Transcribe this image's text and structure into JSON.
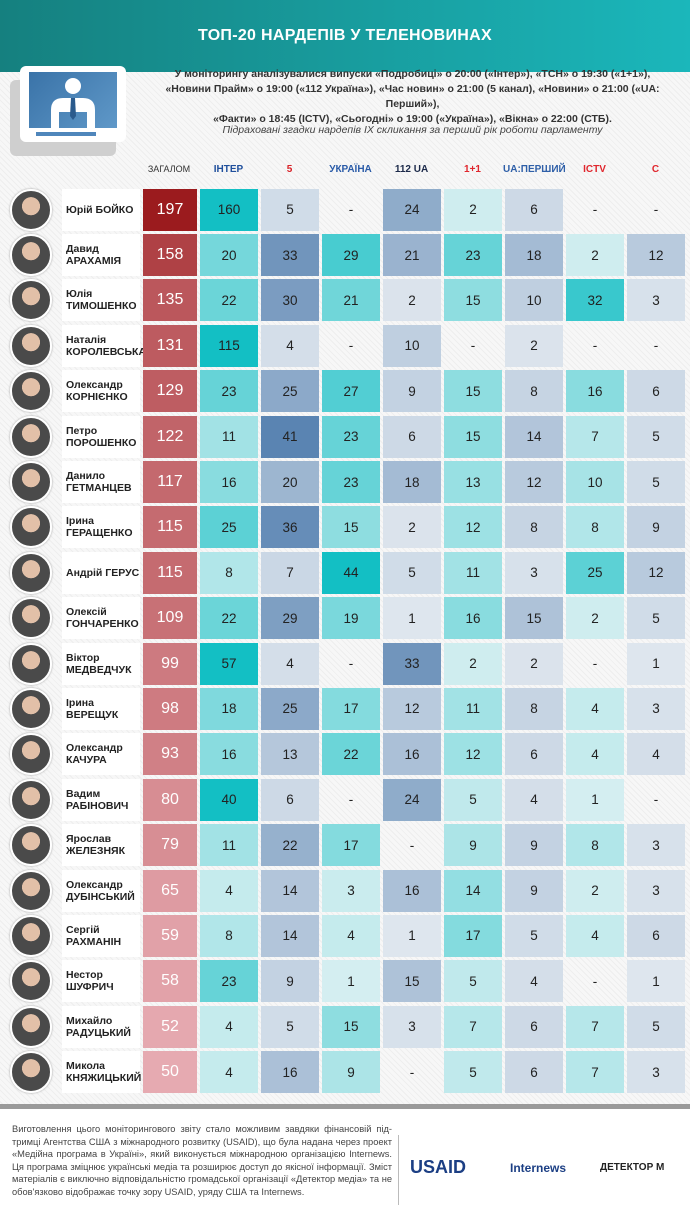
{
  "header": {
    "title": "ТОП-20 НАРДЕПІВ У ТЕЛЕНОВИНАХ"
  },
  "intro": {
    "line1": "У моніторингу аналізувалися випуски «Подробиці» о 20:00 («Інтер»), «ТСН» о 19:30 («1+1»),",
    "line2": "«Новини Прайм» о 19:00 («112 Україна»), «Час новин» о 21:00 (5 канал), «Новини» о 21:00 («UA: Перший»),",
    "line3": "«Факти» о 18:45 (ICTV), «Сьогодні» о 19:00 («Україна»), «Вікна» о 22:00 (СТБ).",
    "subtitle": "Підраховані згадки нардепів IX скликання за перший рік роботи парламенту"
  },
  "colors": {
    "header": "#1aa9ad",
    "total_dark": "#9b1b1e",
    "total_light": "#e6aab1",
    "teal": "#13bfc4",
    "blue": "#5a84b2"
  },
  "chart_data": {
    "type": "heatmap",
    "total_label": "ЗАГАЛОМ",
    "channels": [
      {
        "label": "ІНТЕР",
        "color": "#1f4f9c",
        "scale": "teal"
      },
      {
        "label": "5",
        "color": "#d92127",
        "scale": "blue"
      },
      {
        "label": "УКРАЇНА",
        "color": "#2a5ba8",
        "scale": "teal"
      },
      {
        "label": "112 UA",
        "color": "#1c2a4a",
        "scale": "blue"
      },
      {
        "label": "1+1",
        "color": "#e0262d",
        "scale": "teal"
      },
      {
        "label": "UA:ПЕРШИЙ",
        "color": "#2e5fa8",
        "scale": "blue"
      },
      {
        "label": "ICTV",
        "color": "#e0262d",
        "scale": "teal"
      },
      {
        "label": "С",
        "color": "#e0262d",
        "scale": "blue"
      }
    ],
    "rows": [
      {
        "first": "Юрій БОЙКО",
        "last": "",
        "total": "197",
        "values": [
          "160",
          "5",
          "-",
          "24",
          "2",
          "6",
          "-",
          "-"
        ]
      },
      {
        "first": "Давид",
        "last": "АРАХАМІЯ",
        "total": "158",
        "values": [
          "20",
          "33",
          "29",
          "21",
          "23",
          "18",
          "2",
          "12"
        ]
      },
      {
        "first": "Юлія",
        "last": "ТИМОШЕНКО",
        "total": "135",
        "values": [
          "22",
          "30",
          "21",
          "2",
          "15",
          "10",
          "32",
          "3"
        ]
      },
      {
        "first": "Наталія",
        "last": "КОРОЛЕВСЬКА",
        "total": "131",
        "values": [
          "115",
          "4",
          "-",
          "10",
          "-",
          "2",
          "-",
          "-"
        ]
      },
      {
        "first": "Олександр",
        "last": "КОРНІЄНКО",
        "total": "129",
        "values": [
          "23",
          "25",
          "27",
          "9",
          "15",
          "8",
          "16",
          "6"
        ]
      },
      {
        "first": "Петро",
        "last": "ПОРОШЕНКО",
        "total": "122",
        "values": [
          "11",
          "41",
          "23",
          "6",
          "15",
          "14",
          "7",
          "5"
        ]
      },
      {
        "first": "Данило",
        "last": "ГЕТМАНЦЕВ",
        "total": "117",
        "values": [
          "16",
          "20",
          "23",
          "18",
          "13",
          "12",
          "10",
          "5"
        ]
      },
      {
        "first": "Ірина",
        "last": "ГЕРАЩЕНКО",
        "total": "115",
        "values": [
          "25",
          "36",
          "15",
          "2",
          "12",
          "8",
          "8",
          "9"
        ]
      },
      {
        "first": "Андрій ГЕРУС",
        "last": "",
        "total": "115",
        "values": [
          "8",
          "7",
          "44",
          "5",
          "11",
          "3",
          "25",
          "12"
        ]
      },
      {
        "first": "Олексій",
        "last": "ГОНЧАРЕНКО",
        "total": "109",
        "values": [
          "22",
          "29",
          "19",
          "1",
          "16",
          "15",
          "2",
          "5"
        ]
      },
      {
        "first": "Віктор",
        "last": "МЕДВЕДЧУК",
        "total": "99",
        "values": [
          "57",
          "4",
          "-",
          "33",
          "2",
          "2",
          "-",
          "1"
        ]
      },
      {
        "first": "Ірина ВЕРЕЩУК",
        "last": "",
        "total": "98",
        "values": [
          "18",
          "25",
          "17",
          "12",
          "11",
          "8",
          "4",
          "3"
        ]
      },
      {
        "first": "Олександр",
        "last": "КАЧУРА",
        "total": "93",
        "values": [
          "16",
          "13",
          "22",
          "16",
          "12",
          "6",
          "4",
          "4"
        ]
      },
      {
        "first": "Вадим",
        "last": "РАБІНОВИЧ",
        "total": "80",
        "values": [
          "40",
          "6",
          "-",
          "24",
          "5",
          "4",
          "1",
          "-"
        ]
      },
      {
        "first": "Ярослав",
        "last": "ЖЕЛЕЗНЯК",
        "total": "79",
        "values": [
          "11",
          "22",
          "17",
          "-",
          "9",
          "9",
          "8",
          "3"
        ]
      },
      {
        "first": "Олександр",
        "last": "ДУБІНСЬКИЙ",
        "total": "65",
        "values": [
          "4",
          "14",
          "3",
          "16",
          "14",
          "9",
          "2",
          "3"
        ]
      },
      {
        "first": "Сергій",
        "last": "РАХМАНІН",
        "total": "59",
        "values": [
          "8",
          "14",
          "4",
          "1",
          "17",
          "5",
          "4",
          "6"
        ]
      },
      {
        "first": "Нестор ШУФРИЧ",
        "last": "",
        "total": "58",
        "values": [
          "23",
          "9",
          "1",
          "15",
          "5",
          "4",
          "-",
          "1"
        ]
      },
      {
        "first": "Михайло",
        "last": "РАДУЦЬКИЙ",
        "total": "52",
        "values": [
          "4",
          "5",
          "15",
          "3",
          "7",
          "6",
          "7",
          "5"
        ]
      },
      {
        "first": "Микола",
        "last": "КНЯЖИЦЬКИЙ",
        "total": "50",
        "values": [
          "4",
          "16",
          "9",
          "-",
          "5",
          "6",
          "7",
          "3"
        ]
      }
    ]
  },
  "footer": {
    "text": "Виготовлення цього моніторингового звіту стало можливим завдяки фінансовій під-тримці Агентства США з міжнародного розвитку (USAID), що була надана через проект «Медійна програма в Україні», який виконується міжнародною організацією Internews. Ця програма зміцнює українські медіа та розширює доступ до якісної інформації. Зміст матеріалів є виключно відповідальністю громадської організації «Детектор медіа» та не обов'язково відображає точку зору USAID, уряду США та Internews.",
    "logos": [
      "USAID",
      "Internews",
      "ДЕТЕКТОР M"
    ]
  }
}
